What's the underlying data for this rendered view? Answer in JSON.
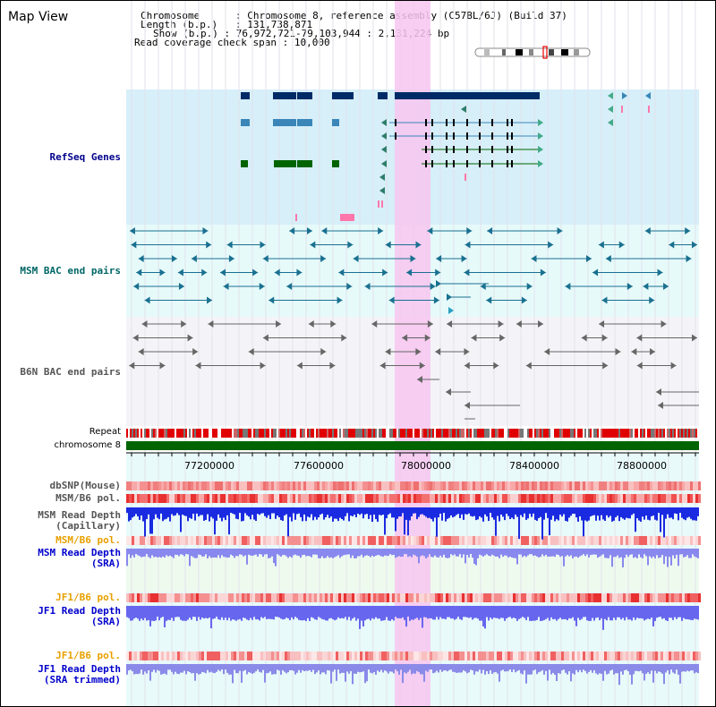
{
  "title": "Map View",
  "info": {
    "chromosome_key": "Chromosome",
    "chromosome_val": "Chromosome 8, reference assembly (C57BL/6J) (Build 37)",
    "length_key": "Length (b.p.)",
    "length_val": "131,738,871",
    "show_key": "Show (b.p.)",
    "show_val": "76,972,721-79,103,944 : 2,131,224 bp",
    "coverage_key": "Read coverage check span",
    "coverage_val": "10,000"
  },
  "tracks": {
    "refseq": "RefSeq Genes",
    "msm_bac": "MSM BAC end pairs",
    "b6n_bac": "B6N BAC end pairs",
    "repeat": "Repeat",
    "chromosome": "chromosome 8",
    "dbsnp": "dbSNP(Mouse)",
    "msm_b6_pol": "MSM/B6 pol.",
    "msm_depth_cap_1": "MSM Read Depth",
    "msm_depth_cap_2": "(Capillary)",
    "msm_b6_pol_sra": "MSM/B6 pol.",
    "msm_depth_sra_1": "MSM Read Depth",
    "msm_depth_sra_2": "(SRA)",
    "jf1_b6_pol": "JF1/B6 pol.",
    "jf1_depth_sra_1": "JF1 Read Depth",
    "jf1_depth_sra_2": "(SRA)",
    "jf1_b6_pol_trim": "JF1/B6 pol.",
    "jf1_depth_trim_1": "JF1 Read Depth",
    "jf1_depth_trim_2": "(SRA trimmed)"
  },
  "axis": {
    "ticks": [
      "77200000",
      "77600000",
      "78000000",
      "78400000",
      "78800000"
    ]
  },
  "colors": {
    "refseq_label": "#00008b",
    "msm_label": "#006666",
    "b6n_label": "#555555",
    "orange_label": "#e8a000",
    "blue_label": "#0000cc",
    "highlight": "#f7c6f0"
  }
}
